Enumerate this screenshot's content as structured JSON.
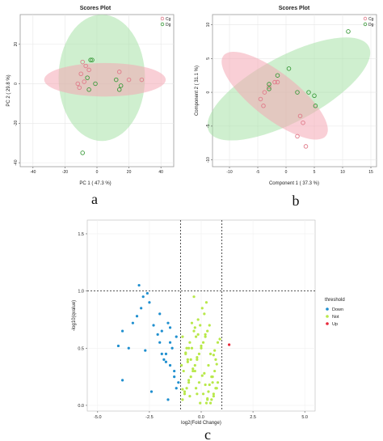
{
  "colors": {
    "cg": "#e07b8a",
    "dg": "#3a9a3a",
    "cg_ellipse": "#f4a8b4",
    "dg_ellipse": "#a8e2a8",
    "down": "#1f8fcf",
    "not": "#b8e84a",
    "up": "#e8283a",
    "grid": "#e6e6e6"
  },
  "panels": {
    "a": "a",
    "b": "b",
    "c": "c"
  },
  "chart_data": [
    {
      "type": "scatter",
      "title": "Scores Plot",
      "xlabel": "PC 1 ( 47.3 %)",
      "ylabel": "PC 2 ( 29.8 %)",
      "xlim": [
        -48,
        48
      ],
      "ylim": [
        -42,
        35
      ],
      "xticks": [
        "-40",
        "-20",
        "0",
        "20",
        "40"
      ],
      "yticks": [
        "-40",
        "-20",
        "0",
        "20"
      ],
      "ytick_values": [
        -40,
        -20,
        0,
        20
      ],
      "xtick_values": [
        -40,
        -20,
        0,
        20,
        40
      ],
      "legend": [
        "Cg",
        "Dg"
      ],
      "legend_position": "top-right",
      "grid": true,
      "ellipses": [
        {
          "series": "Dg",
          "cx": 3,
          "cy": 3,
          "rx": 27,
          "ry": 32
        },
        {
          "series": "Cg",
          "cx": 5,
          "cy": 2,
          "rx": 38,
          "ry": 8.5
        }
      ],
      "series": [
        {
          "name": "Cg",
          "x": [
            -9,
            -7,
            -5,
            -10,
            -12,
            -11,
            14,
            20,
            28,
            -8
          ],
          "y": [
            11,
            9,
            7,
            5,
            0,
            -2,
            6,
            2,
            2,
            1
          ]
        },
        {
          "name": "Dg",
          "x": [
            -4,
            -3,
            -6,
            12,
            14,
            15,
            -1,
            -5,
            -9
          ],
          "y": [
            12,
            12,
            3,
            2,
            -3,
            -1,
            0,
            -3,
            -35
          ]
        }
      ]
    },
    {
      "type": "scatter",
      "title": "Scores Plot",
      "xlabel": "Component 1 ( 37.3 %)",
      "ylabel": "Component 2 ( 31.1 %)",
      "xlim": [
        -13,
        16
      ],
      "ylim": [
        -11,
        11.5
      ],
      "xticks": [
        "-10",
        "-5",
        "0",
        "5",
        "10",
        "15"
      ],
      "xtick_values": [
        -10,
        -5,
        0,
        5,
        10,
        15
      ],
      "yticks": [
        "-10",
        "-5",
        "0",
        "5",
        "10"
      ],
      "ytick_values": [
        -10,
        -5,
        0,
        5,
        10
      ],
      "legend": [
        "Cg",
        "Dg"
      ],
      "legend_position": "top-right",
      "grid": true,
      "ellipses": [
        {
          "series": "Dg",
          "cx": 0.5,
          "cy": 0.5,
          "rx": 16,
          "ry": 5.8,
          "angle": -28
        },
        {
          "series": "Cg",
          "cx": -2,
          "cy": -0.5,
          "rx": 11.5,
          "ry": 4,
          "angle": 38
        }
      ],
      "series": [
        {
          "name": "Cg",
          "x": [
            -4.5,
            -3.8,
            -3,
            -2,
            -1.5,
            -4,
            2.5,
            3,
            2,
            3.5
          ],
          "y": [
            -1,
            0,
            0.8,
            1.5,
            1.5,
            -2,
            -3.5,
            -4.5,
            -6.5,
            -8
          ]
        },
        {
          "name": "Dg",
          "x": [
            -3,
            -3,
            -1.5,
            0.5,
            2,
            4,
            5,
            5.2,
            11
          ],
          "y": [
            1.2,
            0.5,
            2.5,
            3.5,
            0,
            0,
            -0.5,
            -2,
            9
          ]
        }
      ]
    },
    {
      "type": "scatter",
      "title": "",
      "xlabel": "log2(Fold Change)",
      "ylabel": "-log10(qvalue)",
      "xlim": [
        -5.5,
        5.5
      ],
      "ylim": [
        -0.05,
        1.62
      ],
      "xticks": [
        "-5.0",
        "-2.5",
        "0.0",
        "2.5",
        "5.0"
      ],
      "xtick_values": [
        -5,
        -2.5,
        0,
        2.5,
        5
      ],
      "yticks": [
        "0.0",
        "0.5",
        "1.0",
        "1.5"
      ],
      "ytick_values": [
        0,
        0.5,
        1,
        1.5
      ],
      "vlines": [
        -1,
        1
      ],
      "hline": 1.0,
      "legend_title": "threshold",
      "legend": [
        "Down",
        "Not",
        "Up"
      ],
      "legend_position": "right",
      "grid": true,
      "series": [
        {
          "name": "Down",
          "x": [
            -4.0,
            -3.8,
            -3.5,
            -3.3,
            -3.1,
            -3.0,
            -2.9,
            -2.8,
            -2.6,
            -2.5,
            -2.3,
            -2.1,
            -2.0,
            -1.9,
            -1.8,
            -1.7,
            -1.6,
            -1.5,
            -1.4,
            -1.3,
            -1.2,
            -1.1,
            -2.7,
            -2.4,
            -1.5,
            -1.2,
            -3.8,
            -2.0,
            -1.9,
            -1.7,
            -1.5,
            -1.3,
            -1.6
          ],
          "y": [
            0.52,
            0.65,
            0.5,
            0.72,
            0.78,
            1.05,
            0.85,
            0.95,
            0.98,
            0.9,
            0.7,
            0.62,
            0.55,
            0.45,
            0.4,
            0.38,
            0.72,
            0.68,
            0.5,
            0.3,
            0.15,
            0.2,
            0.48,
            0.12,
            0.55,
            0.6,
            0.22,
            0.8,
            0.65,
            0.45,
            0.35,
            0.25,
            0.05
          ]
        },
        {
          "name": "Not",
          "x": [
            -0.9,
            -0.8,
            -0.7,
            -0.6,
            -0.5,
            -0.4,
            -0.3,
            -0.2,
            -0.1,
            0.0,
            0.1,
            0.2,
            0.3,
            0.4,
            0.5,
            0.6,
            0.7,
            0.8,
            -0.85,
            -0.65,
            -0.45,
            -0.25,
            -0.05,
            0.15,
            0.35,
            0.55,
            0.75,
            -0.75,
            -0.55,
            -0.35,
            -0.15,
            0.05,
            0.25,
            0.45,
            0.65,
            -0.9,
            -0.7,
            -0.5,
            -0.3,
            -0.1,
            0.1,
            0.3,
            0.5,
            0.7,
            -0.8,
            -0.6,
            -0.4,
            -0.2,
            0.0,
            0.2,
            0.4,
            0.6,
            0.8,
            -0.95,
            -0.35,
            0.35,
            -0.55,
            0.55,
            -0.15,
            0.15,
            -0.75,
            0.75,
            -0.45,
            0.45,
            -0.25,
            0.25,
            -0.65,
            0.65,
            -0.05,
            0.05,
            -0.9,
            0.9,
            -0.3,
            0.3,
            -0.6,
            0.6,
            -0.2,
            0.2
          ],
          "y": [
            0.05,
            0.1,
            0.15,
            0.2,
            0.25,
            0.3,
            0.35,
            0.4,
            0.45,
            0.5,
            0.55,
            0.6,
            0.65,
            0.7,
            0.05,
            0.1,
            0.15,
            0.2,
            0.3,
            0.4,
            0.5,
            0.6,
            0.7,
            0.8,
            0.35,
            0.25,
            0.15,
            0.45,
            0.55,
            0.65,
            0.75,
            0.85,
            0.9,
            0.45,
            0.3,
            0.6,
            0.5,
            0.4,
            0.3,
            0.2,
            0.1,
            0.05,
            0.25,
            0.4,
            0.12,
            0.22,
            0.32,
            0.42,
            0.52,
            0.62,
            0.18,
            0.08,
            0.55,
            0.35,
            0.95,
            0.12,
            0.08,
            0.2,
            0.62,
            0.28,
            0.46,
            0.36,
            0.72,
            0.02,
            0.15,
            0.02,
            0.38,
            0.48,
            0.02,
            0.26,
            0.14,
            0.58,
            0.68,
            0.06,
            0.5,
            0.44,
            0.1,
            0.18
          ]
        },
        {
          "name": "Up",
          "x": [
            1.35
          ],
          "y": [
            0.53
          ]
        }
      ]
    }
  ]
}
